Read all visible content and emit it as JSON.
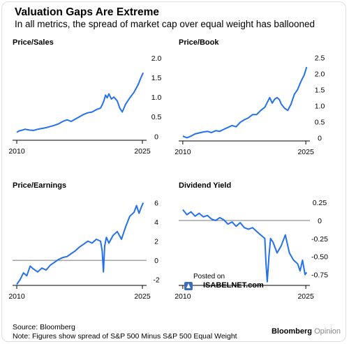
{
  "header": {
    "title": "Valuation Gaps Are Extreme",
    "subtitle": "In all metrics, the spread of market cap over equal weight has ballooned"
  },
  "footer": {
    "source": "Source: Bloomberg",
    "note": "Note: Figures show spread of S&P 500 Minus S&P 500 Equal Weight"
  },
  "brand": {
    "bold": "Bloomberg",
    "light": "Opinion"
  },
  "watermark": {
    "line1": "Posted on",
    "line2": "ISABELNET.com"
  },
  "colors": {
    "line": "#2571ec",
    "axis": "#000000",
    "zero_line": "#777777",
    "text": "#000000"
  },
  "chart_data": [
    {
      "type": "line",
      "title": "Price/Sales",
      "xlim": [
        2009.5,
        2025.5
      ],
      "x_ticks": [
        2010,
        2025
      ],
      "ylim": [
        -0.1,
        2.05
      ],
      "y_ticks": [
        0,
        0.5,
        1.0,
        1.5,
        2.0
      ],
      "y_tick_labels": [
        "0",
        "0.5",
        "1.0",
        "1.5",
        "2.0"
      ],
      "zero_line": false,
      "series": [
        {
          "x": [
            2010,
            2010.3,
            2010.7,
            2011,
            2011.5,
            2012,
            2012.5,
            2013,
            2013.5,
            2014,
            2014.5,
            2015,
            2015.5,
            2016,
            2016.5,
            2017,
            2017.5,
            2018,
            2018.5,
            2019,
            2019.5,
            2020,
            2020.2,
            2020.4,
            2020.6,
            2020.8,
            2021,
            2021.3,
            2021.6,
            2022,
            2022.3,
            2022.6,
            2023,
            2023.5,
            2024,
            2024.5,
            2024.8,
            2025.1
          ],
          "y": [
            0.1,
            0.14,
            0.16,
            0.18,
            0.16,
            0.15,
            0.18,
            0.2,
            0.22,
            0.25,
            0.28,
            0.32,
            0.38,
            0.42,
            0.38,
            0.44,
            0.5,
            0.56,
            0.6,
            0.62,
            0.68,
            0.72,
            0.8,
            0.9,
            1.05,
            0.98,
            1.08,
            0.95,
            1.0,
            0.9,
            0.72,
            0.62,
            0.82,
            0.98,
            1.12,
            1.32,
            1.48,
            1.62
          ]
        }
      ]
    },
    {
      "type": "line",
      "title": "Price/Book",
      "xlim": [
        2009.5,
        2025.5
      ],
      "x_ticks": [
        2010,
        2025
      ],
      "ylim": [
        -0.1,
        2.55
      ],
      "y_ticks": [
        0,
        0.5,
        1.0,
        1.5,
        2.0,
        2.5
      ],
      "y_tick_labels": [
        "0",
        "0.5",
        "1.0",
        "1.5",
        "2.0",
        "2.5"
      ],
      "zero_line": false,
      "series": [
        {
          "x": [
            2010,
            2010.5,
            2011,
            2011.5,
            2012,
            2012.5,
            2013,
            2013.5,
            2014,
            2014.5,
            2015,
            2015.5,
            2016,
            2016.5,
            2017,
            2017.5,
            2018,
            2018.5,
            2019,
            2019.5,
            2020,
            2020.3,
            2020.6,
            2020.9,
            2021.2,
            2021.5,
            2021.8,
            2022,
            2022.4,
            2022.8,
            2023.2,
            2023.6,
            2024,
            2024.4,
            2024.8,
            2025.1
          ],
          "y": [
            0.05,
            0.0,
            0.05,
            0.12,
            0.15,
            0.18,
            0.2,
            0.16,
            0.22,
            0.2,
            0.26,
            0.32,
            0.38,
            0.34,
            0.48,
            0.56,
            0.62,
            0.72,
            0.72,
            0.85,
            0.95,
            1.1,
            1.25,
            1.08,
            1.2,
            1.25,
            1.18,
            1.05,
            0.92,
            0.85,
            1.05,
            1.35,
            1.5,
            1.75,
            1.95,
            2.2
          ]
        }
      ]
    },
    {
      "type": "line",
      "title": "Price/Earnings",
      "xlim": [
        2009.5,
        2025.5
      ],
      "x_ticks": [
        2010,
        2025
      ],
      "ylim": [
        -2.6,
        6.4
      ],
      "y_ticks": [
        -2,
        0,
        2,
        4,
        6
      ],
      "y_tick_labels": [
        "-2",
        "0",
        "2",
        "4",
        "6"
      ],
      "zero_line": true,
      "series": [
        {
          "x": [
            2010,
            2010.4,
            2010.8,
            2011.2,
            2011.6,
            2012,
            2012.5,
            2013,
            2013.5,
            2014,
            2014.5,
            2015,
            2015.5,
            2016,
            2016.5,
            2017,
            2017.5,
            2018,
            2018.5,
            2019,
            2019.5,
            2020,
            2020.2,
            2020.35,
            2020.5,
            2020.7,
            2021,
            2021.5,
            2022,
            2022.5,
            2023,
            2023.5,
            2024,
            2024.3,
            2024.6,
            2024.9,
            2025.1
          ],
          "y": [
            -2.5,
            -2.0,
            -1.3,
            -1.6,
            -0.6,
            -0.9,
            -1.2,
            -0.8,
            -1.0,
            -0.5,
            -0.2,
            0.1,
            0.3,
            0.4,
            0.7,
            1.0,
            1.4,
            1.7,
            2.0,
            1.8,
            2.2,
            2.0,
            1.0,
            -1.2,
            1.5,
            2.4,
            1.8,
            2.6,
            3.0,
            2.2,
            3.5,
            4.6,
            5.0,
            5.7,
            4.9,
            5.6,
            6.0
          ]
        }
      ]
    },
    {
      "type": "line",
      "title": "Dividend Yield",
      "xlim": [
        2009.5,
        2025.5
      ],
      "x_ticks": [
        2010,
        2025
      ],
      "ylim": [
        -0.9,
        0.3
      ],
      "y_ticks": [
        -0.75,
        -0.5,
        -0.25,
        0,
        0.25
      ],
      "y_tick_labels": [
        "-0.75",
        "-0.50",
        "-0.25",
        "0",
        "0.25"
      ],
      "zero_line": true,
      "series": [
        {
          "x": [
            2010,
            2010.5,
            2011,
            2011.5,
            2012,
            2012.5,
            2013,
            2013.5,
            2014,
            2014.5,
            2015,
            2015.5,
            2016,
            2016.5,
            2017,
            2017.5,
            2018,
            2018.5,
            2019,
            2019.5,
            2020,
            2020.15,
            2020.3,
            2020.5,
            2020.7,
            2021,
            2021.5,
            2022,
            2022.5,
            2023,
            2023.5,
            2024,
            2024.3,
            2024.6,
            2024.9,
            2025.1
          ],
          "y": [
            0.15,
            0.08,
            0.12,
            0.06,
            0.1,
            0.05,
            0.07,
            0.02,
            0.0,
            0.04,
            0.01,
            -0.05,
            -0.02,
            -0.08,
            -0.03,
            -0.1,
            -0.12,
            -0.1,
            -0.15,
            -0.2,
            -0.25,
            -0.6,
            -0.85,
            -0.5,
            -0.25,
            -0.3,
            -0.45,
            -0.35,
            -0.2,
            -0.45,
            -0.55,
            -0.6,
            -0.7,
            -0.55,
            -0.75,
            -0.72
          ]
        }
      ]
    }
  ]
}
